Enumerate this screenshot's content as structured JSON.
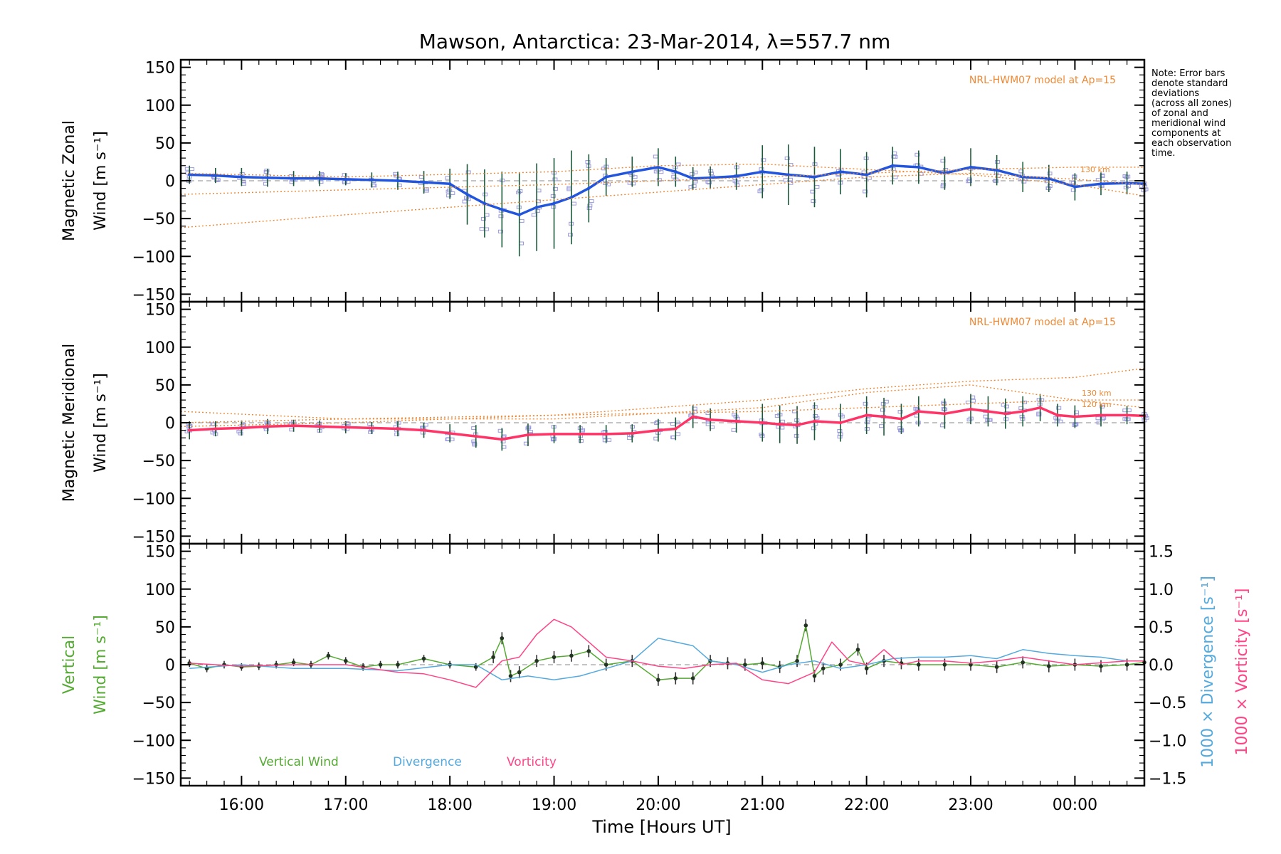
{
  "figure": {
    "title": "Mawson, Antarctica: 23-Mar-2014, λ=557.7 nm",
    "note_lines": [
      "Note: Error bars",
      "denote standard",
      "deviations",
      "(across all zones)",
      "of zonal and",
      "meridional wind",
      "components at",
      "each observation",
      "time."
    ],
    "x_axis_title": "Time [Hours UT]",
    "model_label": "NRL-HWM07 model at Ap=15",
    "panels": {
      "zonal": {
        "ylabel_line1": "Magnetic Zonal",
        "ylabel_line2": "Wind [m s⁻¹]"
      },
      "meridional": {
        "ylabel_line1": "Magnetic Meridional",
        "ylabel_line2": "Wind [m s⁻¹]"
      },
      "vertical": {
        "ylabel_line1": "Vertical",
        "ylabel_line2": "Wind [m s⁻¹]",
        "right_label_div": "1000 × Divergence [s⁻¹]",
        "right_label_vort": "1000 × Vorticity [s⁻¹]",
        "legend": [
          "Vertical Wind",
          "Divergence",
          "Vorticity"
        ]
      }
    },
    "colors": {
      "zonal": "#2255dd",
      "meridional": "#ff3366",
      "vertical": "#55aa33",
      "divergence": "#55aadd",
      "vorticity": "#ff4488",
      "model": "#ee8833",
      "scatter": "#9999dd",
      "errorbar": "#1a5a3a"
    }
  },
  "chart_data": [
    {
      "type": "line",
      "title": "Mawson, Antarctica: 23-Mar-2014, λ=557.7 nm",
      "xlabel": "",
      "ylabel": "Magnetic Zonal Wind [m s⁻¹]",
      "xlim": [
        "15:25",
        "00:40"
      ],
      "ylim": [
        -160,
        160
      ],
      "x_ticks": [
        "16:00",
        "17:00",
        "18:00",
        "19:00",
        "20:00",
        "21:00",
        "22:00",
        "23:00",
        "00:00"
      ],
      "y_ticks": [
        -150,
        -100,
        -50,
        0,
        50,
        100,
        150
      ],
      "annotations": [
        "NRL-HWM07 model at Ap=15",
        "130 km"
      ],
      "series": [
        {
          "role": "zonal wind",
          "x": [
            "15:30",
            "15:45",
            "16:00",
            "16:15",
            "16:30",
            "16:45",
            "17:00",
            "17:15",
            "17:30",
            "17:45",
            "18:00",
            "18:10",
            "18:20",
            "18:30",
            "18:40",
            "18:50",
            "19:00",
            "19:10",
            "19:20",
            "19:30",
            "19:45",
            "20:00",
            "20:10",
            "20:20",
            "20:30",
            "20:45",
            "21:00",
            "21:15",
            "21:30",
            "21:45",
            "22:00",
            "22:15",
            "22:30",
            "22:45",
            "23:00",
            "23:15",
            "23:30",
            "23:45",
            "00:00",
            "00:15",
            "00:30",
            "00:40"
          ],
          "y": [
            8,
            7,
            5,
            4,
            3,
            3,
            2,
            1,
            0,
            -2,
            -4,
            -18,
            -30,
            -38,
            -45,
            -35,
            -30,
            -22,
            -10,
            5,
            12,
            18,
            12,
            3,
            4,
            6,
            12,
            8,
            5,
            12,
            8,
            20,
            18,
            10,
            18,
            14,
            5,
            3,
            -8,
            -4,
            -3,
            -4
          ],
          "error": [
            12,
            10,
            12,
            12,
            10,
            10,
            8,
            10,
            12,
            15,
            20,
            40,
            45,
            50,
            55,
            58,
            60,
            62,
            45,
            25,
            20,
            25,
            20,
            15,
            15,
            18,
            35,
            40,
            40,
            30,
            30,
            25,
            22,
            22,
            25,
            20,
            20,
            18,
            18,
            15,
            15,
            12
          ]
        },
        {
          "role": "model 130 km",
          "x": [
            "15:25",
            "17:00",
            "19:00",
            "21:00",
            "22:00",
            "23:00",
            "00:00",
            "00:40"
          ],
          "y": [
            -18,
            -12,
            -5,
            5,
            10,
            15,
            18,
            18
          ]
        },
        {
          "role": "model 120 km",
          "x": [
            "15:25",
            "17:00",
            "19:00",
            "21:00",
            "22:00",
            "23:00",
            "00:00",
            "00:40"
          ],
          "y": [
            -62,
            -45,
            -25,
            -5,
            5,
            10,
            2,
            -5
          ]
        },
        {
          "role": "model 110 km",
          "x": [
            "15:25",
            "17:00",
            "19:00",
            "20:00",
            "21:00",
            "22:00",
            "23:00",
            "00:00",
            "00:40"
          ],
          "y": [
            10,
            5,
            12,
            20,
            22,
            15,
            8,
            -5,
            -20
          ]
        }
      ]
    },
    {
      "type": "line",
      "title": "",
      "xlabel": "",
      "ylabel": "Magnetic Meridional Wind [m s⁻¹]",
      "xlim": [
        "15:25",
        "00:40"
      ],
      "ylim": [
        -160,
        160
      ],
      "x_ticks": [
        "16:00",
        "17:00",
        "18:00",
        "19:00",
        "20:00",
        "21:00",
        "22:00",
        "23:00",
        "00:00"
      ],
      "y_ticks": [
        -150,
        -100,
        -50,
        0,
        50,
        100,
        150
      ],
      "annotations": [
        "NRL-HWM07 model at Ap=15",
        "130 km",
        "120 km"
      ],
      "series": [
        {
          "role": "meridional wind",
          "x": [
            "15:30",
            "15:45",
            "16:00",
            "16:15",
            "16:30",
            "16:45",
            "17:00",
            "17:15",
            "17:30",
            "17:45",
            "18:00",
            "18:15",
            "18:30",
            "18:45",
            "19:00",
            "19:15",
            "19:30",
            "19:45",
            "20:00",
            "20:10",
            "20:20",
            "20:30",
            "20:45",
            "21:00",
            "21:10",
            "21:20",
            "21:30",
            "21:45",
            "22:00",
            "22:10",
            "22:20",
            "22:30",
            "22:45",
            "23:00",
            "23:10",
            "23:20",
            "23:30",
            "23:40",
            "23:50",
            "00:00",
            "00:15",
            "00:30",
            "00:40"
          ],
          "y": [
            -10,
            -8,
            -7,
            -5,
            -4,
            -5,
            -6,
            -7,
            -8,
            -10,
            -14,
            -18,
            -22,
            -16,
            -15,
            -15,
            -15,
            -14,
            -10,
            -8,
            8,
            4,
            2,
            0,
            -2,
            -3,
            2,
            0,
            10,
            8,
            5,
            15,
            12,
            18,
            15,
            12,
            15,
            20,
            10,
            8,
            10,
            10,
            9
          ],
          "error": [
            12,
            10,
            10,
            10,
            8,
            8,
            8,
            8,
            10,
            10,
            12,
            15,
            15,
            15,
            12,
            12,
            12,
            12,
            15,
            15,
            15,
            15,
            15,
            25,
            25,
            25,
            25,
            25,
            25,
            25,
            20,
            20,
            20,
            20,
            20,
            20,
            20,
            18,
            15,
            15,
            15,
            12,
            12
          ]
        },
        {
          "role": "model 130 km",
          "x": [
            "15:25",
            "17:00",
            "19:00",
            "21:00",
            "22:00",
            "23:00",
            "00:00",
            "00:40"
          ],
          "y": [
            15,
            5,
            5,
            20,
            40,
            50,
            30,
            20
          ]
        },
        {
          "role": "model 120 km",
          "x": [
            "15:25",
            "17:00",
            "19:00",
            "21:00",
            "22:00",
            "23:00",
            "00:00",
            "00:40"
          ],
          "y": [
            -5,
            0,
            10,
            30,
            45,
            55,
            60,
            72
          ]
        },
        {
          "role": "model 110 km",
          "x": [
            "15:25",
            "17:00",
            "19:00",
            "21:00",
            "22:00",
            "23:00",
            "00:00",
            "00:40"
          ],
          "y": [
            0,
            5,
            10,
            15,
            20,
            25,
            30,
            30
          ]
        }
      ]
    },
    {
      "type": "line",
      "title": "",
      "xlabel": "Time [Hours UT]",
      "ylabel": "Vertical Wind [m s⁻¹]",
      "xlim": [
        "15:25",
        "00:40"
      ],
      "ylim": [
        -160,
        160
      ],
      "x_ticks": [
        "16:00",
        "17:00",
        "18:00",
        "19:00",
        "20:00",
        "21:00",
        "22:00",
        "23:00",
        "00:00"
      ],
      "y_ticks": [
        -150,
        -100,
        -50,
        0,
        50,
        100,
        150
      ],
      "y2label": "1000 × Divergence [s⁻¹] / 1000 × Vorticity [s⁻¹]",
      "y2lim": [
        -1.6,
        1.6
      ],
      "y2_ticks": [
        -1.5,
        -1.0,
        -0.5,
        0.0,
        0.5,
        1.0,
        1.5
      ],
      "y2_tick_labels": [
        "−1.5",
        "−1.0",
        "−0.5",
        "0.0",
        "0.5",
        "1.0",
        "1.5"
      ],
      "legend": [
        "Vertical Wind",
        "Divergence",
        "Vorticity"
      ],
      "series": [
        {
          "name": "Vertical Wind",
          "axis": "left",
          "x": [
            "15:30",
            "15:40",
            "15:50",
            "16:00",
            "16:10",
            "16:20",
            "16:30",
            "16:40",
            "16:50",
            "17:00",
            "17:10",
            "17:20",
            "17:30",
            "17:45",
            "18:00",
            "18:15",
            "18:25",
            "18:30",
            "18:35",
            "18:40",
            "18:50",
            "19:00",
            "19:10",
            "19:20",
            "19:30",
            "19:45",
            "20:00",
            "20:10",
            "20:20",
            "20:30",
            "20:40",
            "20:50",
            "21:00",
            "21:10",
            "21:20",
            "21:25",
            "21:30",
            "21:35",
            "21:45",
            "21:55",
            "22:00",
            "22:10",
            "22:20",
            "22:30",
            "22:45",
            "23:00",
            "23:15",
            "23:30",
            "23:45",
            "00:00",
            "00:15",
            "00:30",
            "00:40"
          ],
          "y": [
            2,
            -5,
            0,
            -3,
            -2,
            0,
            3,
            0,
            12,
            5,
            -3,
            0,
            0,
            8,
            0,
            -3,
            10,
            35,
            -15,
            -10,
            5,
            10,
            12,
            18,
            0,
            5,
            -20,
            -18,
            -18,
            5,
            2,
            0,
            2,
            -3,
            5,
            52,
            -15,
            -5,
            0,
            20,
            -5,
            5,
            2,
            0,
            0,
            0,
            -3,
            3,
            -2,
            0,
            -2,
            0,
            3
          ],
          "error": [
            5,
            5,
            5,
            5,
            5,
            5,
            5,
            5,
            5,
            5,
            5,
            5,
            5,
            5,
            5,
            5,
            8,
            8,
            8,
            8,
            8,
            8,
            8,
            8,
            8,
            8,
            8,
            8,
            8,
            8,
            8,
            8,
            8,
            8,
            8,
            8,
            8,
            8,
            8,
            8,
            8,
            8,
            8,
            8,
            8,
            8,
            8,
            8,
            8,
            8,
            8,
            8,
            8
          ]
        },
        {
          "name": "Divergence",
          "axis": "right",
          "x": [
            "15:30",
            "16:00",
            "16:30",
            "17:00",
            "17:30",
            "18:00",
            "18:15",
            "18:30",
            "18:45",
            "19:00",
            "19:15",
            "19:30",
            "19:45",
            "20:00",
            "20:10",
            "20:20",
            "20:30",
            "20:45",
            "21:00",
            "21:15",
            "21:30",
            "21:45",
            "22:00",
            "22:15",
            "22:30",
            "22:45",
            "23:00",
            "23:15",
            "23:30",
            "23:45",
            "00:00",
            "00:15",
            "00:30",
            "00:40"
          ],
          "y": [
            -0.05,
            0.0,
            -0.05,
            -0.05,
            -0.08,
            0.0,
            0.0,
            -0.2,
            -0.15,
            -0.2,
            -0.15,
            -0.05,
            0.05,
            0.35,
            0.3,
            0.25,
            0.05,
            0.0,
            -0.1,
            0.0,
            0.05,
            -0.05,
            0.0,
            0.08,
            0.1,
            0.1,
            0.12,
            0.08,
            0.2,
            0.15,
            0.12,
            0.1,
            0.05,
            0.05
          ]
        },
        {
          "name": "Vorticity",
          "axis": "right",
          "x": [
            "15:30",
            "16:00",
            "16:30",
            "17:00",
            "17:30",
            "17:45",
            "18:00",
            "18:15",
            "18:30",
            "18:40",
            "18:50",
            "19:00",
            "19:10",
            "19:20",
            "19:30",
            "19:45",
            "20:00",
            "20:15",
            "20:30",
            "20:45",
            "21:00",
            "21:15",
            "21:30",
            "21:40",
            "21:50",
            "22:00",
            "22:10",
            "22:20",
            "22:30",
            "22:45",
            "23:00",
            "23:15",
            "23:30",
            "23:45",
            "00:00",
            "00:30",
            "00:40"
          ],
          "y": [
            0.02,
            -0.02,
            0.0,
            0.0,
            -0.1,
            -0.12,
            -0.2,
            -0.3,
            0.05,
            0.1,
            0.4,
            0.6,
            0.5,
            0.3,
            0.1,
            0.05,
            -0.02,
            -0.05,
            0.0,
            0.02,
            -0.2,
            -0.25,
            -0.1,
            0.3,
            0.05,
            0.0,
            0.2,
            0.0,
            0.05,
            0.05,
            0.02,
            0.05,
            0.1,
            0.05,
            0.0,
            0.05,
            0.05
          ]
        }
      ]
    }
  ]
}
